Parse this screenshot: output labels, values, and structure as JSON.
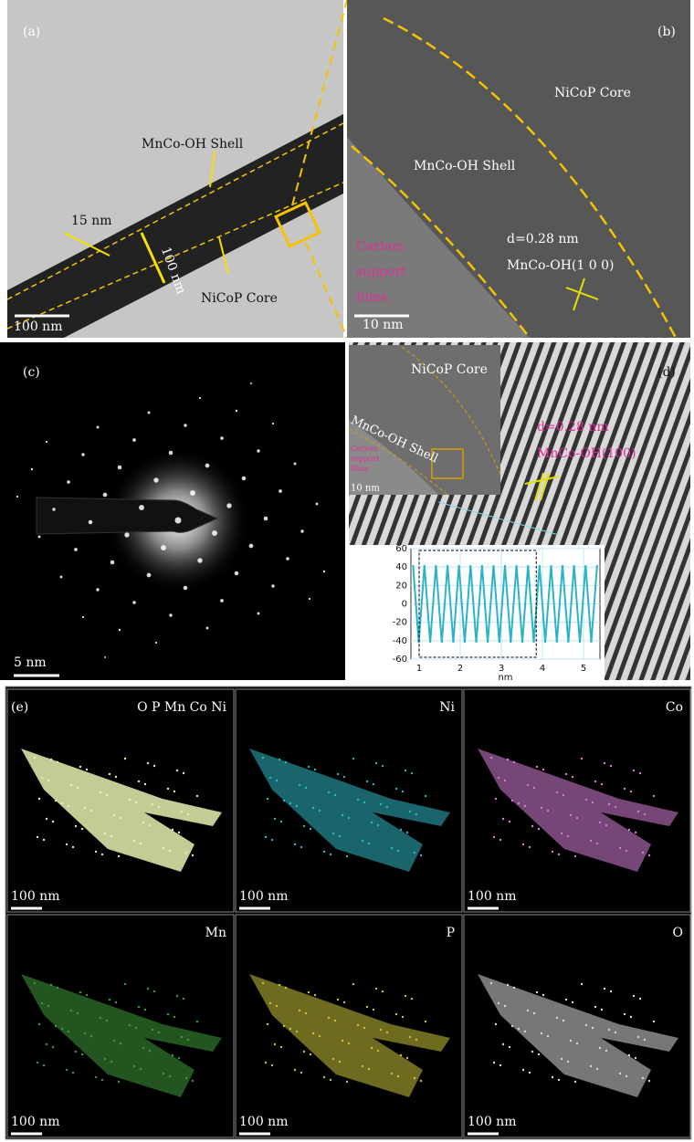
{
  "panels": {
    "a": {
      "label": "(a)",
      "shell": "MnCo-OH Shell",
      "thickness": "15 nm",
      "diameter": "100 nm",
      "core": "NiCoP Core",
      "scale_bar": "100 nm"
    },
    "b": {
      "label": "(b)",
      "core": "NiCoP Core",
      "shell": "MnCo-OH Shell",
      "spacing": "d=0.28 nm",
      "plane": "MnCo-OH(1 0 0)",
      "support": [
        "Carbon",
        "support",
        "films"
      ],
      "scale_bar": "10 nm"
    },
    "c": {
      "label": "(c)",
      "scale_bar": "5 nm"
    },
    "d": {
      "label": "(d)",
      "inset": {
        "core": "NiCoP Core",
        "shell": "MnCo-OH Shell",
        "support": [
          "Carbon",
          "support",
          "films"
        ],
        "scale_bar": "10 nm"
      },
      "spacing": "d=0.28 nm",
      "plane": "MnCo-OH(100)",
      "profile": {
        "xlabel": "nm",
        "xlim": [
          0.8,
          5.4
        ],
        "ylim": [
          -60,
          60
        ],
        "xticks": [
          1,
          2,
          3,
          4,
          5
        ],
        "yticks": [
          60,
          40,
          20,
          0,
          -20,
          -40,
          -60
        ],
        "color": "#2bb3c8",
        "x": [
          0.85,
          0.99,
          1.13,
          1.27,
          1.41,
          1.55,
          1.69,
          1.83,
          1.97,
          2.11,
          2.25,
          2.39,
          2.53,
          2.67,
          2.81,
          2.95,
          3.09,
          3.23,
          3.37,
          3.51,
          3.65,
          3.79,
          3.93,
          4.07,
          4.21,
          4.35,
          4.49,
          4.63,
          4.77,
          4.91,
          5.05,
          5.19,
          5.33
        ],
        "values": [
          42,
          -42,
          42,
          -42,
          42,
          -42,
          42,
          -42,
          42,
          -42,
          42,
          -42,
          42,
          -42,
          42,
          -42,
          42,
          -42,
          42,
          -42,
          42,
          -42,
          42,
          -42,
          42,
          -42,
          42,
          -42,
          42,
          -42,
          42,
          -42,
          42
        ]
      }
    },
    "e": {
      "label": "(e)",
      "maps": [
        {
          "element": "O P Mn Co Ni",
          "color": "#e6f0b0",
          "scale_bar": "100 nm"
        },
        {
          "element": "Ni",
          "color": "#2fb8c4",
          "scale_bar": "100 nm"
        },
        {
          "element": "Co",
          "color": "#d77fd8",
          "scale_bar": "100 nm"
        },
        {
          "element": "Mn",
          "color": "#3f9a3a",
          "scale_bar": "100 nm"
        },
        {
          "element": "P",
          "color": "#c9c23a",
          "scale_bar": "100 nm"
        },
        {
          "element": "O",
          "color": "#d8d8d8",
          "scale_bar": "100 nm"
        }
      ]
    }
  }
}
